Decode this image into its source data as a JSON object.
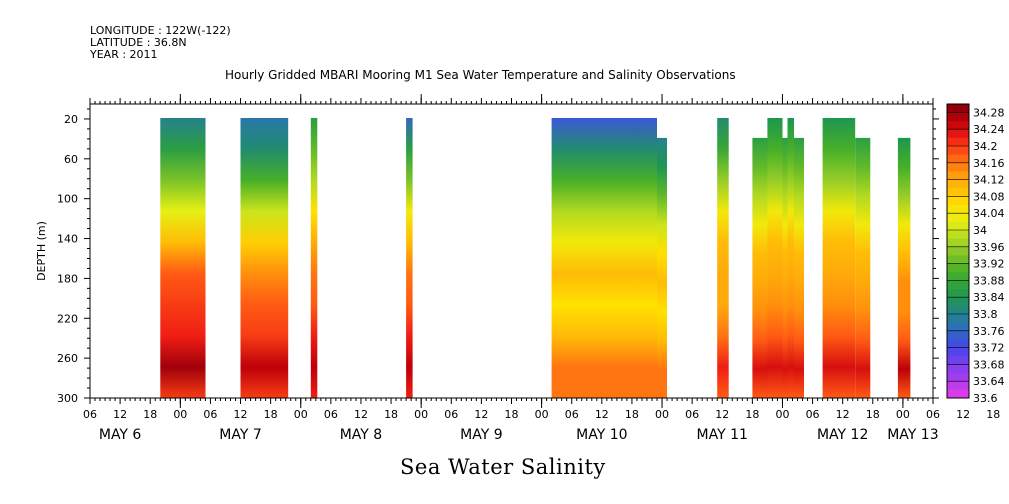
{
  "header": {
    "longitude": "LONGITUDE : 122W(-122)",
    "latitude": "LATITUDE : 36.8N",
    "year": "YEAR : 2011"
  },
  "chart_data": {
    "type": "heatmap",
    "title": "Hourly Gridded MBARI Mooring M1 Sea Water Temperature and Salinity Observations",
    "xlabel": "Sea Water Salinity",
    "ylabel": "DEPTH (m)",
    "x_range_hours": [
      6,
      174
    ],
    "x_origin": "May 6 00:00",
    "ylim": [
      300,
      5
    ],
    "y_ticks": [
      20,
      60,
      100,
      140,
      180,
      220,
      260,
      300
    ],
    "x_hour_ticks": [
      "06",
      "12",
      "18",
      "00",
      "06",
      "12",
      "18",
      "00",
      "06",
      "12",
      "18",
      "00",
      "06",
      "12",
      "18",
      "00",
      "06",
      "12",
      "18",
      "00",
      "06",
      "12",
      "18",
      "00",
      "06",
      "12",
      "18",
      "00",
      "06",
      "12",
      "18",
      "00",
      "06"
    ],
    "x_day_labels": [
      {
        "label": "MAY  6",
        "hour": 12
      },
      {
        "label": "MAY  7",
        "hour": 36
      },
      {
        "label": "MAY  8",
        "hour": 60
      },
      {
        "label": "MAY  9",
        "hour": 84
      },
      {
        "label": "MAY 10",
        "hour": 108
      },
      {
        "label": "MAY 11",
        "hour": 132
      },
      {
        "label": "MAY 12",
        "hour": 156
      },
      {
        "label": "MAY 13",
        "hour": 170
      }
    ],
    "colorbar": {
      "min": 33.6,
      "max": 34.3,
      "step": 0.02,
      "labels": [
        "34.28",
        "34.24",
        "34.2",
        "34.16",
        "34.12",
        "34.08",
        "34.04",
        "34",
        "33.96",
        "33.92",
        "33.88",
        "33.84",
        "33.8",
        "33.76",
        "33.72",
        "33.68",
        "33.64",
        "33.6"
      ]
    },
    "segments": [
      {
        "start": 20,
        "end": 29,
        "top_depth": 20,
        "profile": [
          33.8,
          33.86,
          33.94,
          34.02,
          34.1,
          34.18,
          34.2,
          34.22,
          34.28,
          34.2
        ]
      },
      {
        "start": 36,
        "end": 45.5,
        "top_depth": 20,
        "profile": [
          33.78,
          33.82,
          33.9,
          34.0,
          34.08,
          34.14,
          34.18,
          34.2,
          34.26,
          34.2
        ]
      },
      {
        "start": 50,
        "end": 51.3,
        "top_depth": 20,
        "profile": [
          33.86,
          33.92,
          33.98,
          34.06,
          34.12,
          34.16,
          34.18,
          34.22,
          34.26,
          34.22
        ]
      },
      {
        "start": 69,
        "end": 70.3,
        "top_depth": 20,
        "profile": [
          33.76,
          33.86,
          33.94,
          34.04,
          34.1,
          34.16,
          34.18,
          34.22,
          34.26,
          34.22
        ]
      },
      {
        "start": 98,
        "end": 119,
        "top_depth": 20,
        "profile": [
          33.74,
          33.82,
          33.9,
          33.98,
          34.04,
          34.1,
          34.06,
          34.1,
          34.16,
          34.16
        ]
      },
      {
        "start": 119,
        "end": 121,
        "top_depth": 40,
        "profile": [
          33.8,
          33.84,
          33.92,
          34.0,
          34.06,
          34.1,
          34.06,
          34.1,
          34.16,
          34.16
        ]
      },
      {
        "start": 131,
        "end": 133.3,
        "top_depth": 20,
        "profile": [
          33.82,
          33.88,
          33.96,
          34.04,
          34.1,
          34.12,
          34.12,
          34.16,
          34.22,
          34.18
        ]
      },
      {
        "start": 138,
        "end": 141,
        "top_depth": 40,
        "profile": [
          33.86,
          33.92,
          33.98,
          34.04,
          34.1,
          34.12,
          34.14,
          34.18,
          34.24,
          34.18
        ]
      },
      {
        "start": 141,
        "end": 144,
        "top_depth": 20,
        "profile": [
          33.84,
          33.9,
          33.96,
          34.04,
          34.1,
          34.12,
          34.14,
          34.18,
          34.24,
          34.18
        ]
      },
      {
        "start": 144,
        "end": 145,
        "top_depth": 40,
        "profile": [
          33.86,
          33.92,
          33.98,
          34.04,
          34.1,
          34.12,
          34.14,
          34.18,
          34.24,
          34.18
        ]
      },
      {
        "start": 145,
        "end": 146.3,
        "top_depth": 20,
        "profile": [
          33.84,
          33.9,
          33.96,
          34.04,
          34.1,
          34.12,
          34.14,
          34.18,
          34.24,
          34.18
        ]
      },
      {
        "start": 146.3,
        "end": 148.3,
        "top_depth": 40,
        "profile": [
          33.86,
          33.92,
          33.98,
          34.04,
          34.1,
          34.12,
          34.14,
          34.18,
          34.24,
          34.18
        ]
      },
      {
        "start": 152,
        "end": 158.5,
        "top_depth": 20,
        "profile": [
          33.84,
          33.9,
          33.96,
          34.04,
          34.1,
          34.12,
          34.14,
          34.18,
          34.24,
          34.18
        ]
      },
      {
        "start": 158.5,
        "end": 161.5,
        "top_depth": 40,
        "profile": [
          33.86,
          33.92,
          33.98,
          34.04,
          34.1,
          34.12,
          34.14,
          34.18,
          34.24,
          34.18
        ]
      },
      {
        "start": 167,
        "end": 169.5,
        "top_depth": 40,
        "profile": [
          33.84,
          33.9,
          33.96,
          34.04,
          34.1,
          34.14,
          34.14,
          34.18,
          34.26,
          34.18
        ]
      }
    ]
  }
}
